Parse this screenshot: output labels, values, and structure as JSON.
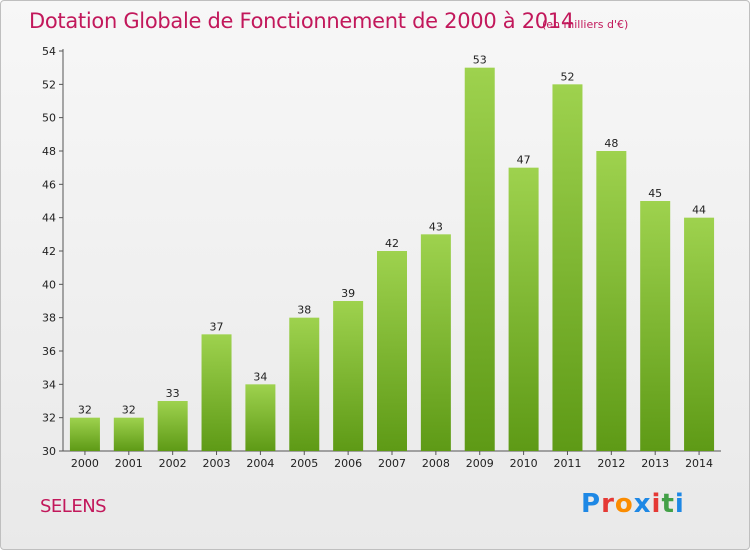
{
  "chart_data": {
    "type": "bar",
    "title": "Dotation Globale de Fonctionnement de 2000 à 2014",
    "unit_note": "(en milliers d'€)",
    "categories": [
      "2000",
      "2001",
      "2002",
      "2003",
      "2004",
      "2005",
      "2006",
      "2007",
      "2008",
      "2009",
      "2010",
      "2011",
      "2012",
      "2013",
      "2014"
    ],
    "values": [
      32,
      32,
      33,
      37,
      34,
      38,
      39,
      42,
      43,
      53,
      47,
      52,
      48,
      45,
      44
    ],
    "ylim": [
      30,
      54
    ],
    "yticks": [
      30,
      32,
      34,
      36,
      38,
      40,
      42,
      44,
      46,
      48,
      50,
      52,
      54
    ],
    "grid": false,
    "bar_color_light": "#9ed24e",
    "bar_color_dark": "#5e9a16"
  },
  "footer": {
    "commune": "SELENS",
    "brand": "Proxiti"
  },
  "colors": {
    "accent": "#c2185b",
    "brand_letters": [
      "#1e88e5",
      "#e53935",
      "#fb8c00",
      "#1e88e5",
      "#e53935",
      "#43a047",
      "#1e88e5"
    ]
  }
}
